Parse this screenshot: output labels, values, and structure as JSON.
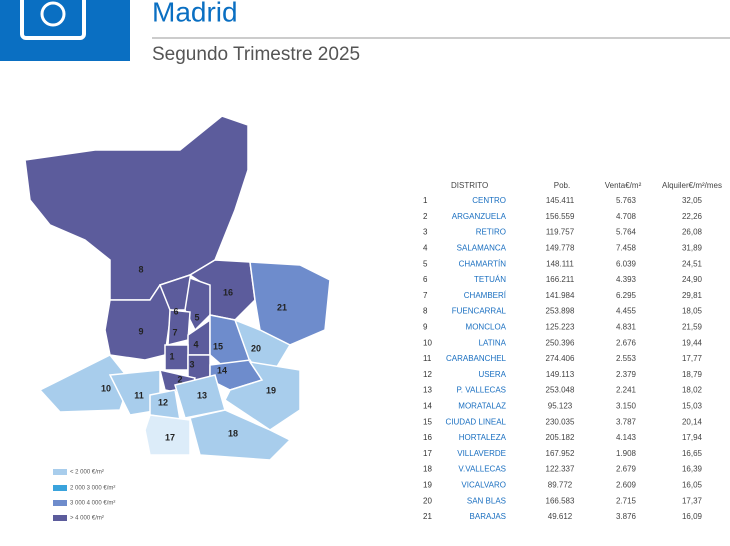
{
  "header": {
    "title": "Madrid",
    "subtitle": "Segundo Trimestre 2025"
  },
  "legend": [
    "< 2 000 €/m²",
    "2 000   3 000 €/m²",
    "3 000   4 000 €/m²",
    "> 4 000 €/m²"
  ],
  "table": {
    "columns": [
      "DISTRITO",
      "Pob.",
      "Venta€/m²",
      "Alquiler€/m²/mes"
    ],
    "rows": [
      [
        "1",
        "CENTRO",
        "145.411",
        "5.763",
        "32,05"
      ],
      [
        "2",
        "ARGANZUELA",
        "156.559",
        "4.708",
        "22,26"
      ],
      [
        "3",
        "RETIRO",
        "119.757",
        "5.764",
        "26,08"
      ],
      [
        "4",
        "SALAMANCA",
        "149.778",
        "7.458",
        "31,89"
      ],
      [
        "5",
        "CHAMARTÍN",
        "148.111",
        "6.039",
        "24,51"
      ],
      [
        "6",
        "TETUÁN",
        "166.211",
        "4.393",
        "24,90"
      ],
      [
        "7",
        "CHAMBERÍ",
        "141.984",
        "6.295",
        "29,81"
      ],
      [
        "8",
        "FUENCARRAL",
        "253.898",
        "4.455",
        "18,05"
      ],
      [
        "9",
        "MONCLOA",
        "125.223",
        "4.831",
        "21,59"
      ],
      [
        "10",
        "LATINA",
        "250.396",
        "2.676",
        "19,44"
      ],
      [
        "11",
        "CARABANCHEL",
        "274.406",
        "2.553",
        "17,77"
      ],
      [
        "12",
        "USERA",
        "149.113",
        "2.379",
        "18,79"
      ],
      [
        "13",
        "P. VALLECAS",
        "253.048",
        "2.241",
        "18,02"
      ],
      [
        "14",
        "MORATALAZ",
        "95.123",
        "3.150",
        "15,03"
      ],
      [
        "15",
        "CIUDAD LINEAL",
        "230.035",
        "3.787",
        "20,14"
      ],
      [
        "16",
        "HORTALEZA",
        "205.182",
        "4.143",
        "17,94"
      ],
      [
        "17",
        "VILLAVERDE",
        "167.952",
        "1.908",
        "16,65"
      ],
      [
        "18",
        "V.VALLECAS",
        "122.337",
        "2.679",
        "16,39"
      ],
      [
        "19",
        "VICALVARO",
        "89.772",
        "2.609",
        "16,05"
      ],
      [
        "20",
        "SAN BLAS",
        "166.583",
        "2.715",
        "17,37"
      ],
      [
        "21",
        "BARAJAS",
        "49.612",
        "3.876",
        "16,09"
      ]
    ]
  }
}
